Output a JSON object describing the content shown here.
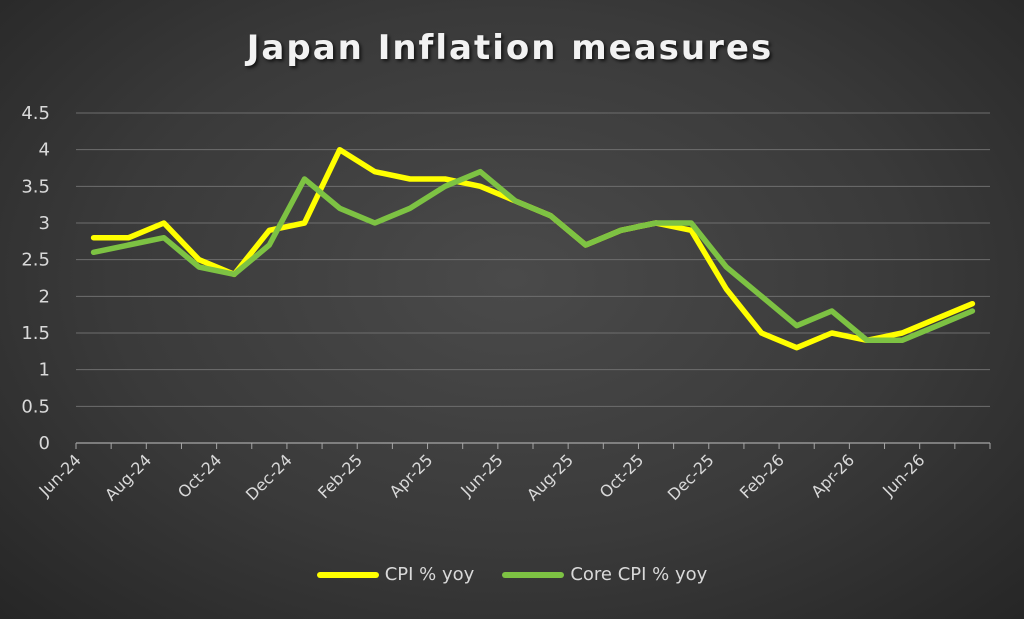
{
  "chart_data": {
    "type": "line",
    "title": "Japan Inflation measures",
    "xlabel": "",
    "ylabel": "",
    "ylim": [
      0,
      4.5
    ],
    "yticks": [
      "0",
      "0.5",
      "1",
      "1.5",
      "2",
      "2.5",
      "3",
      "3.5",
      "4",
      "4.5"
    ],
    "x": [
      "Jun-24",
      "Jul-24",
      "Aug-24",
      "Sep-24",
      "Oct-24",
      "Nov-24",
      "Dec-24",
      "Jan-25",
      "Feb-25",
      "Mar-25",
      "Apr-25",
      "May-25",
      "Jun-25",
      "Jul-25",
      "Aug-25",
      "Sep-25",
      "Oct-25",
      "Nov-25",
      "Dec-25",
      "Jan-26",
      "Feb-26",
      "Mar-26",
      "Apr-26",
      "May-26",
      "Jun-26",
      "Jul-26"
    ],
    "xtick_labels": [
      "Jun-24",
      "Aug-24",
      "Oct-24",
      "Dec-24",
      "Feb-25",
      "Apr-25",
      "Jun-25",
      "Aug-25",
      "Oct-25",
      "Dec-25",
      "Feb-26",
      "Apr-26",
      "Jun-26"
    ],
    "grid": true,
    "legend": "bottom",
    "series": [
      {
        "name": "CPI % yoy",
        "color": "#ffff00",
        "values": [
          2.8,
          2.8,
          3.0,
          2.5,
          2.3,
          2.9,
          3.0,
          4.0,
          3.7,
          3.6,
          3.6,
          3.5,
          3.3,
          3.1,
          2.7,
          2.9,
          3.0,
          2.9,
          2.1,
          1.5,
          1.3,
          1.5,
          1.4,
          1.5,
          1.7,
          1.9
        ]
      },
      {
        "name": "Core CPI % yoy",
        "color": "#7dc243",
        "values": [
          2.6,
          2.7,
          2.8,
          2.4,
          2.3,
          2.7,
          3.6,
          3.2,
          3.0,
          3.2,
          3.5,
          3.7,
          3.3,
          3.1,
          2.7,
          2.9,
          3.0,
          3.0,
          2.4,
          2.0,
          1.6,
          1.8,
          1.4,
          1.4,
          1.6,
          1.8
        ]
      }
    ]
  }
}
